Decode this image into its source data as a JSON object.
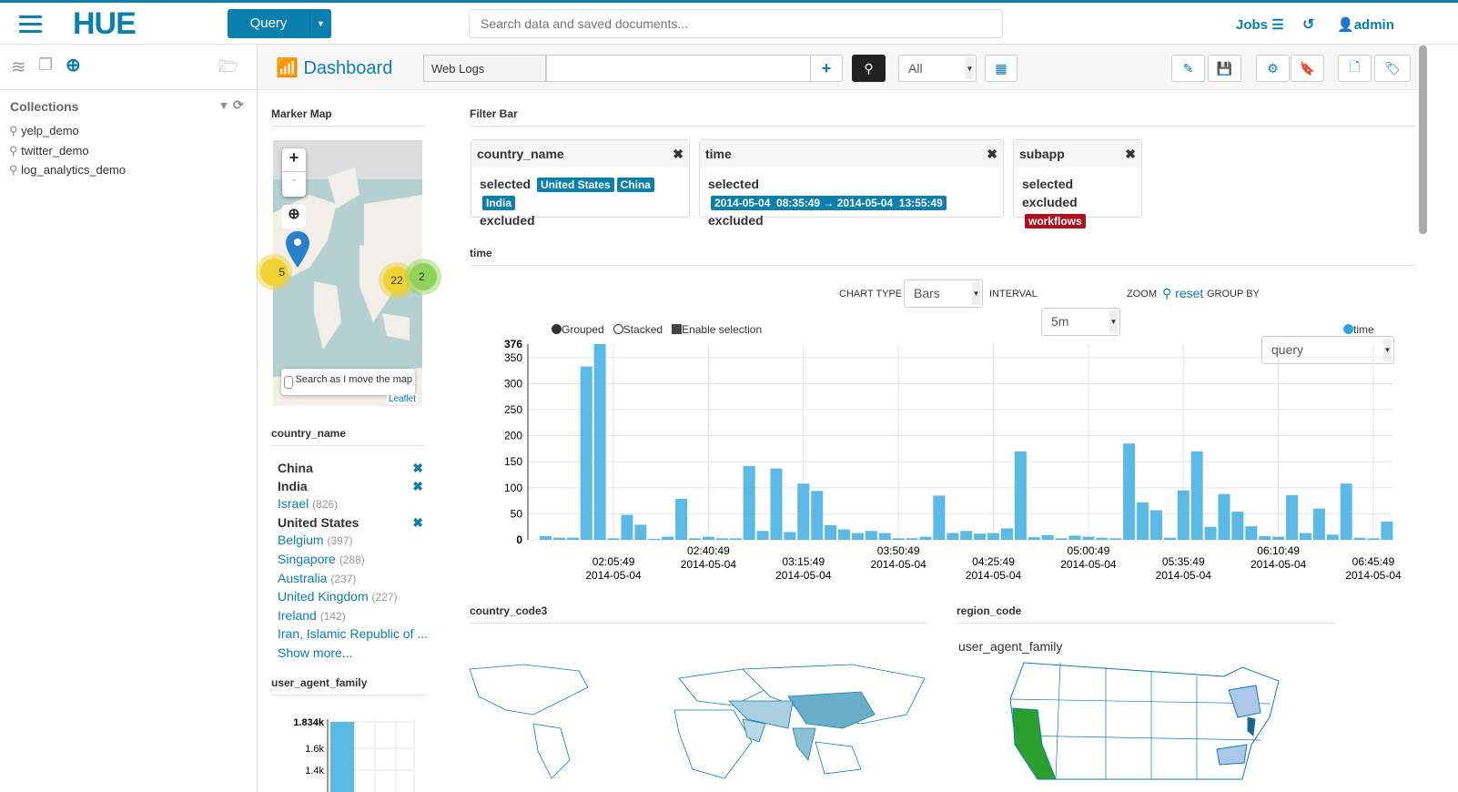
{
  "header": {
    "logo": "HUE",
    "query_button": "Query",
    "search_placeholder": "Search data and saved documents...",
    "jobs": "Jobs",
    "user": "admin",
    "icons": [
      "menu-icon",
      "history-icon",
      "user-icon",
      "sliders-icon"
    ]
  },
  "sidebar": {
    "title": "Collections",
    "items": [
      "yelp_demo",
      "twitter_demo",
      "log_analytics_demo"
    ],
    "icons": [
      "database-icon",
      "documents-icon",
      "search-plus-icon",
      "folder-open-icon",
      "filter-icon",
      "refresh-icon"
    ]
  },
  "toolbar": {
    "title": "Dashboard",
    "collection": "Web Logs",
    "query_value": "",
    "all_select": "All"
  },
  "marker_map": {
    "title": "Marker Map",
    "zoom_in": "+",
    "zoom_out": "-",
    "clusters": [
      "5",
      "22",
      "2"
    ],
    "search_move": "Search as I move the map",
    "attribution": "Leaflet"
  },
  "country_facet": {
    "title": "country_name",
    "items": [
      {
        "label": "China",
        "selected": true
      },
      {
        "label": "India",
        "selected": true
      },
      {
        "label": "Israel",
        "count": "(826)"
      },
      {
        "label": "United States",
        "selected": true
      },
      {
        "label": "Belgium",
        "count": "(397)"
      },
      {
        "label": "Singapore",
        "count": "(288)"
      },
      {
        "label": "Australia",
        "count": "(237)"
      },
      {
        "label": "United Kingdom",
        "count": "(227)"
      },
      {
        "label": "Ireland",
        "count": "(142)"
      },
      {
        "label": "Iran, Islamic Republic of ..."
      }
    ],
    "show_more": "Show more..."
  },
  "filter_bar": {
    "title": "Filter Bar",
    "selected_label": "selected",
    "excluded_label": "excluded",
    "cards": [
      {
        "title": "country_name",
        "selected": [
          "United States",
          "China",
          "India"
        ]
      },
      {
        "title": "time",
        "selected": [
          "2014-05-04  08:35:49 → 2014-05-04  13:55:49"
        ]
      },
      {
        "title": "subapp",
        "excluded": [
          "workflows"
        ]
      }
    ]
  },
  "time_widget": {
    "title": "time",
    "chart_type_label": "Chart type",
    "chart_type": "Bars",
    "interval_label": "Interval",
    "interval": "5m",
    "zoom_label": "Zoom",
    "reset": "reset",
    "group_by_label": "Group by",
    "group_by": "query",
    "grouped": "Grouped",
    "stacked": "Stacked",
    "enable_selection": "Enable selection"
  },
  "bottom": {
    "country_code3": "country_code3",
    "region_code": "region_code",
    "region_sub": "user_agent_family"
  },
  "ua_widget": {
    "title": "user_agent_family"
  },
  "colors": {
    "accent": "#0b7fad",
    "bar": "#5bbae5",
    "excluded": "#b30f1f"
  },
  "chart_data": [
    {
      "type": "bar",
      "legend": [
        "time"
      ],
      "legend_placement": "top-right",
      "grid": true,
      "ylim": [
        0,
        376
      ],
      "yticks": [
        0,
        50,
        100,
        150,
        200,
        250,
        300,
        350,
        376
      ],
      "x": [
        "01:40:49",
        "01:45:49",
        "01:50:49",
        "01:55:49",
        "02:00:49",
        "02:05:49",
        "02:10:49",
        "02:15:49",
        "02:20:49",
        "02:25:49",
        "02:30:49",
        "02:35:49",
        "02:40:49",
        "02:45:49",
        "02:50:49",
        "02:55:49",
        "03:00:49",
        "03:05:49",
        "03:10:49",
        "03:15:49",
        "03:20:49",
        "03:25:49",
        "03:30:49",
        "03:35:49",
        "03:40:49",
        "03:45:49",
        "03:50:49",
        "03:55:49",
        "04:00:49",
        "04:05:49",
        "04:10:49",
        "04:15:49",
        "04:20:49",
        "04:25:49",
        "04:30:49",
        "04:35:49",
        "04:40:49",
        "04:45:49",
        "04:50:49",
        "04:55:49",
        "05:00:49",
        "05:05:49",
        "05:10:49",
        "05:15:49",
        "05:20:49",
        "05:25:49",
        "05:30:49",
        "05:35:49",
        "05:40:49",
        "05:45:49",
        "05:50:49",
        "05:55:49",
        "06:00:49",
        "06:05:49",
        "06:10:49",
        "06:15:49",
        "06:20:49",
        "06:25:49",
        "06:30:49",
        "06:35:49",
        "06:40:49",
        "06:45:49",
        "06:50:49"
      ],
      "values": [
        7,
        4,
        4,
        333,
        376,
        3,
        48,
        29,
        2,
        6,
        79,
        3,
        6,
        3,
        3,
        142,
        17,
        137,
        15,
        108,
        94,
        28,
        20,
        13,
        17,
        13,
        3,
        3,
        6,
        85,
        13,
        17,
        12,
        13,
        22,
        170,
        5,
        9,
        3,
        8,
        6,
        4,
        3,
        185,
        72,
        57,
        4,
        95,
        170,
        25,
        88,
        54,
        26,
        7,
        6,
        86,
        13,
        60,
        10,
        108,
        4,
        3,
        35
      ],
      "x_ticks": [
        "02:05:49",
        "02:40:49",
        "03:15:49",
        "03:50:49",
        "04:25:49",
        "05:00:49",
        "05:35:49",
        "06:10:49",
        "06:45:49"
      ],
      "x_tick_date": "2014-05-04"
    },
    {
      "type": "bar",
      "values": [
        1834
      ],
      "yticks": [
        "1.834k",
        "1.6k",
        "1.4k"
      ]
    }
  ]
}
